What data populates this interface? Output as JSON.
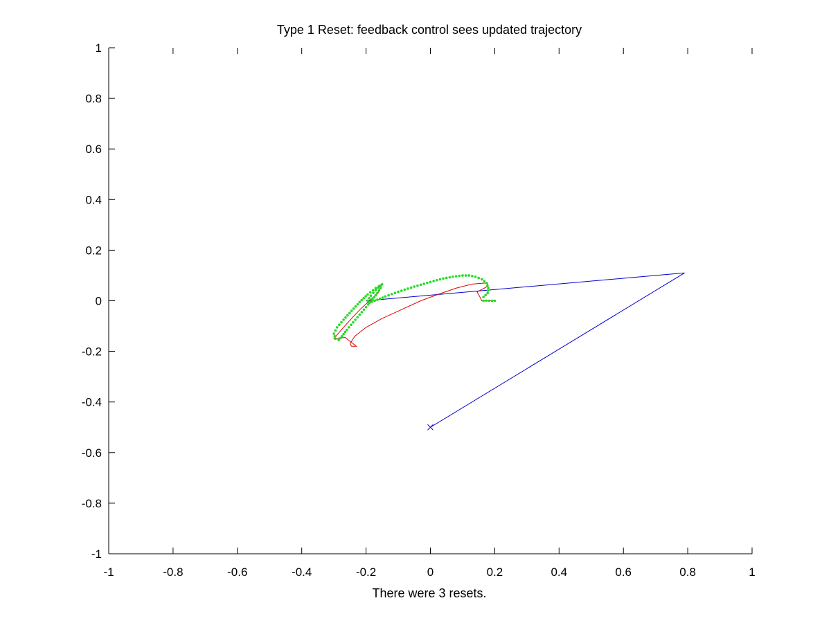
{
  "chart_data": {
    "type": "line",
    "title": "Type 1 Reset: feedback control sees updated trajectory",
    "xlabel": "There were 3 resets.",
    "ylabel": "",
    "xlim": [
      -1,
      1
    ],
    "ylim": [
      -1,
      1
    ],
    "grid": false,
    "x_ticks": [
      -1,
      -0.8,
      -0.6,
      -0.4,
      -0.2,
      0,
      0.2,
      0.4,
      0.6,
      0.8,
      1
    ],
    "x_tick_labels": [
      "-1",
      "-0.8",
      "-0.6",
      "-0.4",
      "-0.2",
      "0",
      "0.2",
      "0.4",
      "0.6",
      "0.8",
      "1"
    ],
    "y_ticks": [
      -1,
      -0.8,
      -0.6,
      -0.4,
      -0.2,
      0,
      0.2,
      0.4,
      0.6,
      0.8,
      1
    ],
    "y_tick_labels": [
      "-1",
      "-0.8",
      "-0.6",
      "-0.4",
      "-0.2",
      "0",
      "0.2",
      "0.4",
      "0.6",
      "0.8",
      "1"
    ],
    "series": [
      {
        "color": "#0000cc",
        "style": "line",
        "points": [
          [
            0,
            -0.5
          ],
          [
            0.79,
            0.11
          ],
          [
            -0.2,
            0.0
          ]
        ]
      },
      {
        "color": "#00aa00",
        "style": "marker-x",
        "points": [
          [
            0,
            -0.5
          ]
        ]
      },
      {
        "color": "#dd0000",
        "style": "line",
        "points": [
          [
            0.2,
            0.0
          ],
          [
            0.16,
            0.0
          ],
          [
            0.152,
            0.02
          ],
          [
            0.145,
            0.035
          ],
          [
            0.16,
            0.045
          ],
          [
            0.175,
            0.055
          ],
          [
            0.178,
            0.067
          ],
          [
            0.17,
            0.07
          ],
          [
            0.13,
            0.066
          ],
          [
            0.08,
            0.05
          ],
          [
            0.03,
            0.028
          ],
          [
            -0.03,
            0.0
          ],
          [
            -0.09,
            -0.035
          ],
          [
            -0.15,
            -0.07
          ],
          [
            -0.2,
            -0.105
          ],
          [
            -0.235,
            -0.14
          ],
          [
            -0.25,
            -0.17
          ],
          [
            -0.245,
            -0.18
          ],
          [
            -0.23,
            -0.18
          ],
          [
            -0.265,
            -0.145
          ],
          [
            -0.3,
            -0.15
          ],
          [
            -0.275,
            -0.112
          ],
          [
            -0.245,
            -0.07
          ],
          [
            -0.215,
            -0.03
          ],
          [
            -0.185,
            0.005
          ],
          [
            -0.16,
            0.035
          ],
          [
            -0.15,
            0.065
          ]
        ]
      },
      {
        "color": "#22dd22",
        "style": "dots",
        "points": [
          [
            0.2,
            0.0
          ],
          [
            0.165,
            0.0
          ],
          [
            0.165,
            0.015
          ],
          [
            0.178,
            0.03
          ],
          [
            0.18,
            0.05
          ],
          [
            0.175,
            0.07
          ],
          [
            0.16,
            0.085
          ],
          [
            0.14,
            0.095
          ],
          [
            0.12,
            0.1
          ],
          [
            0.1,
            0.1
          ],
          [
            0.07,
            0.095
          ],
          [
            0.04,
            0.088
          ],
          [
            0.01,
            0.078
          ],
          [
            -0.02,
            0.067
          ],
          [
            -0.05,
            0.056
          ],
          [
            -0.08,
            0.044
          ],
          [
            -0.11,
            0.031
          ],
          [
            -0.14,
            0.017
          ],
          [
            -0.165,
            0.004
          ],
          [
            -0.19,
            -0.008
          ],
          [
            -0.195,
            0.0
          ],
          [
            -0.185,
            0.02
          ],
          [
            -0.17,
            0.042
          ],
          [
            -0.155,
            0.06
          ],
          [
            -0.15,
            0.065
          ],
          [
            -0.17,
            0.05
          ],
          [
            -0.195,
            0.025
          ],
          [
            -0.22,
            -0.005
          ],
          [
            -0.245,
            -0.04
          ],
          [
            -0.27,
            -0.075
          ],
          [
            -0.29,
            -0.105
          ],
          [
            -0.3,
            -0.13
          ],
          [
            -0.295,
            -0.15
          ],
          [
            -0.285,
            -0.155
          ],
          [
            -0.275,
            -0.14
          ],
          [
            -0.26,
            -0.115
          ],
          [
            -0.24,
            -0.085
          ],
          [
            -0.22,
            -0.055
          ],
          [
            -0.2,
            -0.025
          ],
          [
            -0.18,
            0.005
          ],
          [
            -0.165,
            0.03
          ],
          [
            -0.155,
            0.05
          ]
        ]
      }
    ]
  }
}
